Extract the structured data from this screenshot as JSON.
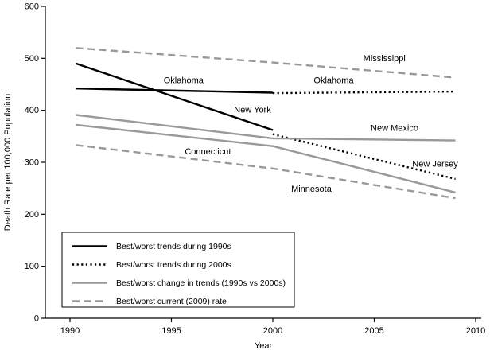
{
  "chart_data": {
    "type": "line",
    "title": "",
    "xlabel": "Year",
    "ylabel": "Death Rate per 100,000 Population",
    "xlim": [
      1988.8,
      2010.3
    ],
    "ylim": [
      0,
      600
    ],
    "x_ticks": [
      "1990",
      "1995",
      "2000",
      "2005",
      "2010"
    ],
    "y_ticks": [
      "0",
      "100",
      "200",
      "300",
      "400",
      "500",
      "600"
    ],
    "grid": false,
    "legend_position": "inside-lower-left",
    "colors": {
      "black": "#000000",
      "gray": "#999999"
    },
    "series": [
      {
        "name": "New York",
        "group": "Best/worst trends during 1990s",
        "color": "#000000",
        "dash": "solid",
        "points": [
          [
            1990.3,
            490
          ],
          [
            2000,
            362
          ]
        ]
      },
      {
        "name": "Oklahoma",
        "group": "Best/worst trends during 1990s",
        "color": "#000000",
        "dash": "solid",
        "points": [
          [
            1990.3,
            442
          ],
          [
            2000,
            434
          ]
        ]
      },
      {
        "name": "Oklahoma",
        "group": "Best/worst trends during 2000s",
        "color": "#000000",
        "dash": "dotted",
        "points": [
          [
            2000,
            433
          ],
          [
            2009,
            436
          ]
        ]
      },
      {
        "name": "New Jersey",
        "group": "Best/worst trends during 2000s",
        "color": "#000000",
        "dash": "dotted",
        "points": [
          [
            2000,
            354
          ],
          [
            2009,
            268
          ]
        ]
      },
      {
        "name": "New Mexico",
        "group": "Best/worst change in trends (1990s vs 2000s)",
        "color": "#999999",
        "dash": "solid",
        "points": [
          [
            1990.3,
            391
          ],
          [
            2000,
            346
          ],
          [
            2009,
            342
          ]
        ]
      },
      {
        "name": "Minnesota",
        "group": "Best/worst change in trends (1990s vs 2000s)",
        "color": "#999999",
        "dash": "solid",
        "points": [
          [
            1990.3,
            372
          ],
          [
            2000,
            331
          ],
          [
            2009,
            242
          ]
        ]
      },
      {
        "name": "Mississippi",
        "group": "Best/worst current (2009) rate",
        "color": "#999999",
        "dash": "dashed",
        "points": [
          [
            1990.3,
            520
          ],
          [
            2000,
            492
          ],
          [
            2009,
            463
          ]
        ]
      },
      {
        "name": "Connecticut",
        "group": "Best/worst current (2009) rate",
        "color": "#999999",
        "dash": "dashed",
        "points": [
          [
            1990.3,
            333
          ],
          [
            2000,
            288
          ],
          [
            2009,
            231
          ]
        ]
      }
    ],
    "annotations": [
      {
        "text": "Mississippi",
        "x": 2005.5,
        "y": 500
      },
      {
        "text": "Oklahoma",
        "x": 1995.6,
        "y": 458
      },
      {
        "text": "Oklahoma",
        "x": 2003.0,
        "y": 458
      },
      {
        "text": "New York",
        "x": 1999.0,
        "y": 401
      },
      {
        "text": "New Mexico",
        "x": 2006.0,
        "y": 366
      },
      {
        "text": "Connecticut",
        "x": 1996.8,
        "y": 321
      },
      {
        "text": "New Jersey",
        "x": 2008.0,
        "y": 297
      },
      {
        "text": "Minnesota",
        "x": 2001.9,
        "y": 249
      }
    ],
    "legend": [
      {
        "label": "Best/worst trends during 1990s",
        "color": "#000000",
        "dash": "solid"
      },
      {
        "label": "Best/worst trends during 2000s",
        "color": "#000000",
        "dash": "dotted"
      },
      {
        "label": "Best/worst change in trends (1990s vs 2000s)",
        "color": "#999999",
        "dash": "solid"
      },
      {
        "label": "Best/worst current (2009) rate",
        "color": "#999999",
        "dash": "dashed"
      }
    ]
  }
}
